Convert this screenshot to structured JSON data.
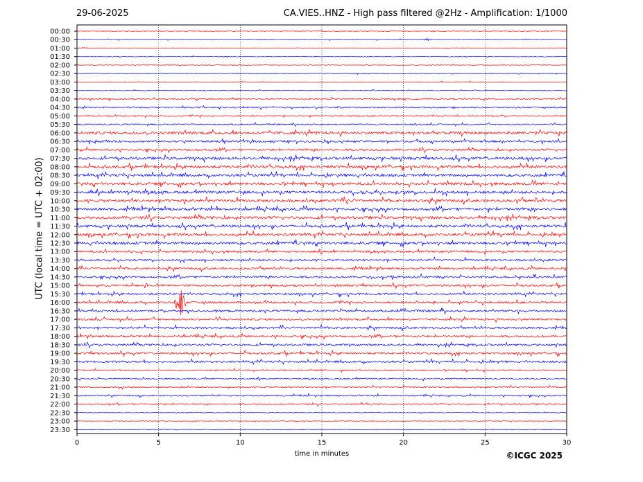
{
  "header": {
    "date": "29-06-2025",
    "title": "CA.VIES..HNZ - High pass filtered @2Hz - Amplification: 1/1000"
  },
  "footer": {
    "copyright": "©ICGC 2025"
  },
  "chart_data": {
    "type": "line",
    "subtype": "seismogram-helicorder",
    "xlabel": "time in minutes",
    "ylabel": "UTC (local time = UTC + 02:00)",
    "xlim": [
      0,
      30
    ],
    "xticks": [
      0,
      5,
      10,
      15,
      20,
      25,
      30
    ],
    "grid": "vertical dotted lines at 5-minute intervals",
    "colors": {
      "even_rows": "#ff0000",
      "odd_rows": "#0000ff"
    },
    "rows": [
      "00:00",
      "00:30",
      "01:00",
      "01:30",
      "02:00",
      "02:30",
      "03:00",
      "03:30",
      "04:00",
      "04:30",
      "05:00",
      "05:30",
      "06:00",
      "06:30",
      "07:00",
      "07:30",
      "08:00",
      "08:30",
      "09:00",
      "09:30",
      "10:00",
      "10:30",
      "11:00",
      "11:30",
      "12:00",
      "12:30",
      "13:00",
      "13:30",
      "14:00",
      "14:30",
      "15:00",
      "15:30",
      "16:00",
      "16:30",
      "17:00",
      "17:30",
      "18:00",
      "18:30",
      "19:00",
      "19:30",
      "20:00",
      "20:30",
      "21:00",
      "21:30",
      "22:00",
      "22:30",
      "23:00",
      "23:30"
    ],
    "noise_level": [
      1,
      1,
      1,
      1,
      1,
      1,
      1,
      1,
      2,
      2,
      2,
      2,
      4,
      3,
      3,
      4,
      4,
      4,
      4,
      4,
      4,
      4,
      4,
      4,
      4,
      4,
      3,
      3,
      3,
      3,
      3,
      3,
      3,
      3,
      3,
      3,
      3,
      3,
      3,
      3,
      2,
      2,
      2,
      2,
      2,
      1,
      1,
      1
    ],
    "events": [
      {
        "row": "00:30",
        "minute": 21.4,
        "amp": 2.5
      },
      {
        "row": "05:30",
        "minute": 20.8,
        "amp": 2
      },
      {
        "row": "07:00",
        "minute": 0.1,
        "amp": 3
      },
      {
        "row": "08:30",
        "minute": 15.7,
        "amp": 3
      },
      {
        "row": "09:30",
        "minute": 17.5,
        "amp": 3
      },
      {
        "row": "14:30",
        "minute": 18.0,
        "amp": 3
      },
      {
        "row": "14:30",
        "minute": 19.3,
        "amp": 3
      },
      {
        "row": "15:00",
        "minute": 15.9,
        "amp": 5
      },
      {
        "row": "17:30",
        "minute": 0.1,
        "amp": 2
      },
      {
        "row": "16:00",
        "minute": 6.3,
        "amp": 36
      }
    ],
    "data_end": {
      "row": "23:30",
      "minute": 30
    }
  }
}
